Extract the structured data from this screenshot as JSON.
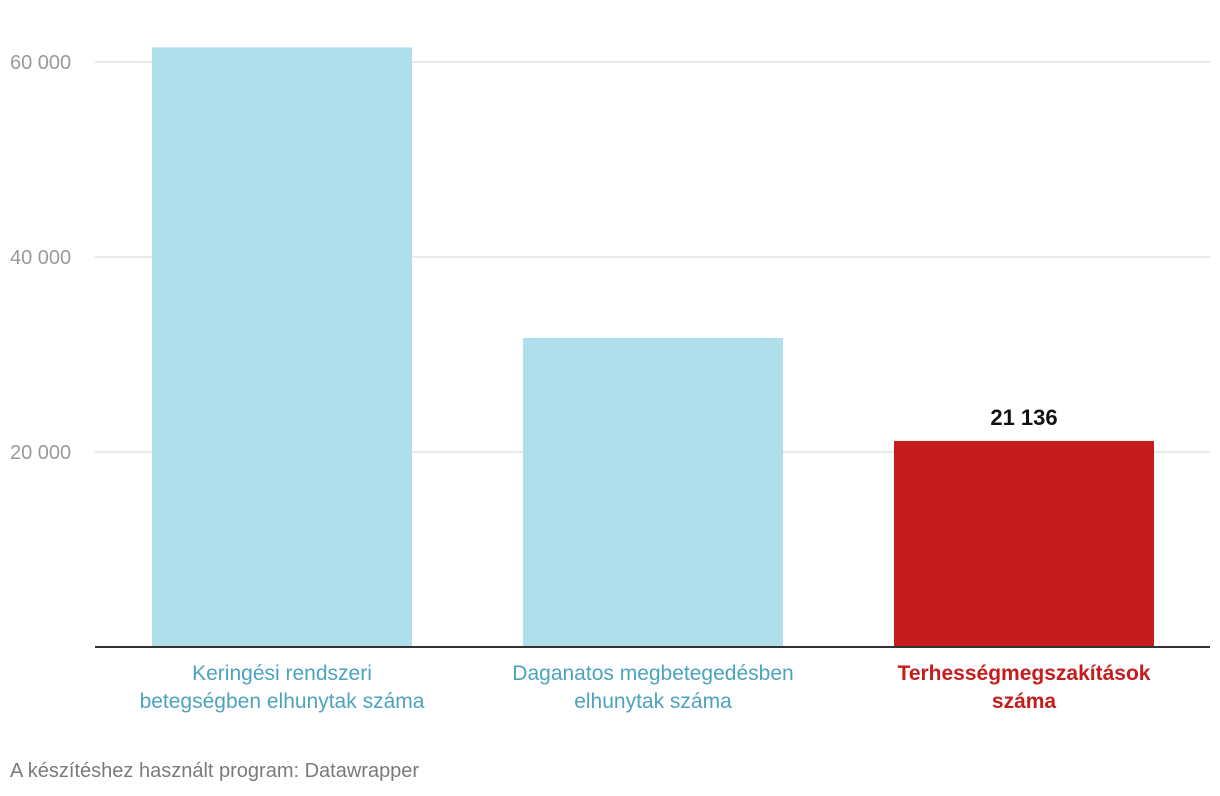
{
  "chart_data": {
    "type": "bar",
    "categories": [
      [
        "Keringési rendszeri",
        "betegségben elhunytak száma"
      ],
      [
        "Daganatos megbetegedésben",
        "elhunytak száma"
      ],
      [
        "Terhességmegszakítások",
        "száma"
      ]
    ],
    "values": [
      61500,
      31700,
      21136
    ],
    "data_labels": [
      "",
      "",
      "21 136"
    ],
    "highlight_index": 2,
    "yticks": [
      20000,
      40000,
      60000
    ],
    "ytick_labels": [
      "20 000",
      "40 000",
      "60 000"
    ],
    "ylim": [
      0,
      65000
    ],
    "grid": true,
    "colors": {
      "bar": "#b0dfec",
      "highlight": "#c61c1e",
      "category_label": "#4ba3bf",
      "highlight_label": "#c61c1e",
      "tick_label": "#9a9a9a",
      "grid": "#e2e2e2",
      "axis": "#333333",
      "data_label": "#111111"
    }
  },
  "footer": {
    "credit": "A készítéshez használt program: Datawrapper"
  }
}
